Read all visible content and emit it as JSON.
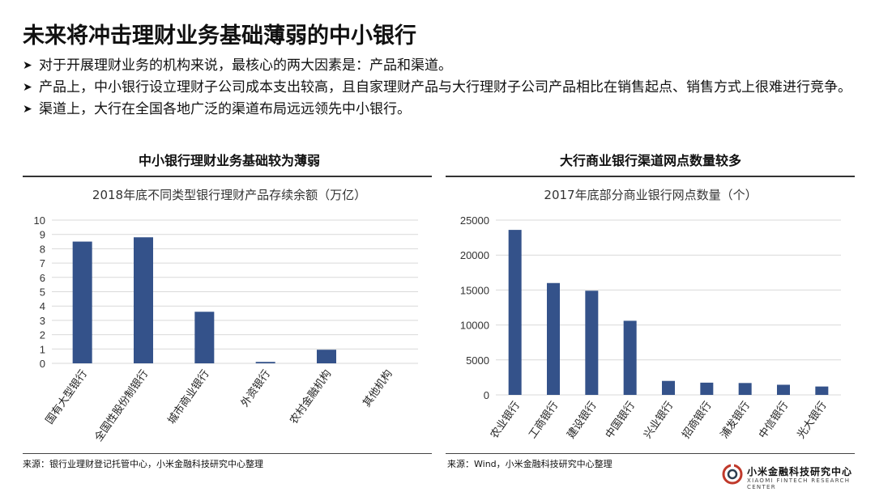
{
  "title": "未来将冲击理财业务基础薄弱的中小银行",
  "bullets": [
    "对于开展理财业务的机构来说，最核心的两大因素是：产品和渠道。",
    "产品上，中小银行设立理财子公司成本支出较高，且自家理财产品与大行理财子公司产品相比在销售起点、销售方式上很难进行竞争。",
    "渠道上，大行在全国各地广泛的渠道布局远远领先中小银行。"
  ],
  "bullet_icon": "arrow-right-icon",
  "left_panel": {
    "heading": "中小银行理财业务基础较为薄弱",
    "source": "来源：银行业理财登记托管中心，小米金融科技研究中心整理"
  },
  "right_panel": {
    "heading": "大行商业银行渠道网点数量较多",
    "source": "来源：Wind，小米金融科技研究中心整理"
  },
  "logo": {
    "name": "小米金融科技研究中心",
    "subtitle": "XIAOMI FINTECH RESEARCH CENTER",
    "icon": "fintech-logo-icon"
  },
  "colors": {
    "bar": "#34528a",
    "grid": "#d9d9d9"
  },
  "chart_data": [
    {
      "type": "bar",
      "title": "2018年底不同类型银行理财产品存续余额（万亿）",
      "categories": [
        "国有大型银行",
        "全国性股份制银行",
        "城市商业银行",
        "外资银行",
        "农村金融机构",
        "其他机构"
      ],
      "values": [
        8.5,
        8.8,
        3.6,
        0.1,
        0.95,
        0
      ],
      "ylim": [
        0,
        10
      ],
      "yticks": [
        0,
        1,
        2,
        3,
        4,
        5,
        6,
        7,
        8,
        9,
        10
      ],
      "grid": true,
      "xlabel": "",
      "ylabel": ""
    },
    {
      "type": "bar",
      "title": "2017年底部分商业银行网点数量（个）",
      "categories": [
        "农业银行",
        "工商银行",
        "建设银行",
        "中国银行",
        "兴业银行",
        "招商银行",
        "浦发银行",
        "中信银行",
        "光大银行"
      ],
      "values": [
        23600,
        16000,
        14900,
        10600,
        2000,
        1750,
        1700,
        1450,
        1200
      ],
      "ylim": [
        0,
        25000
      ],
      "yticks": [
        0,
        5000,
        10000,
        15000,
        20000,
        25000
      ],
      "grid": true,
      "xlabel": "",
      "ylabel": ""
    }
  ]
}
